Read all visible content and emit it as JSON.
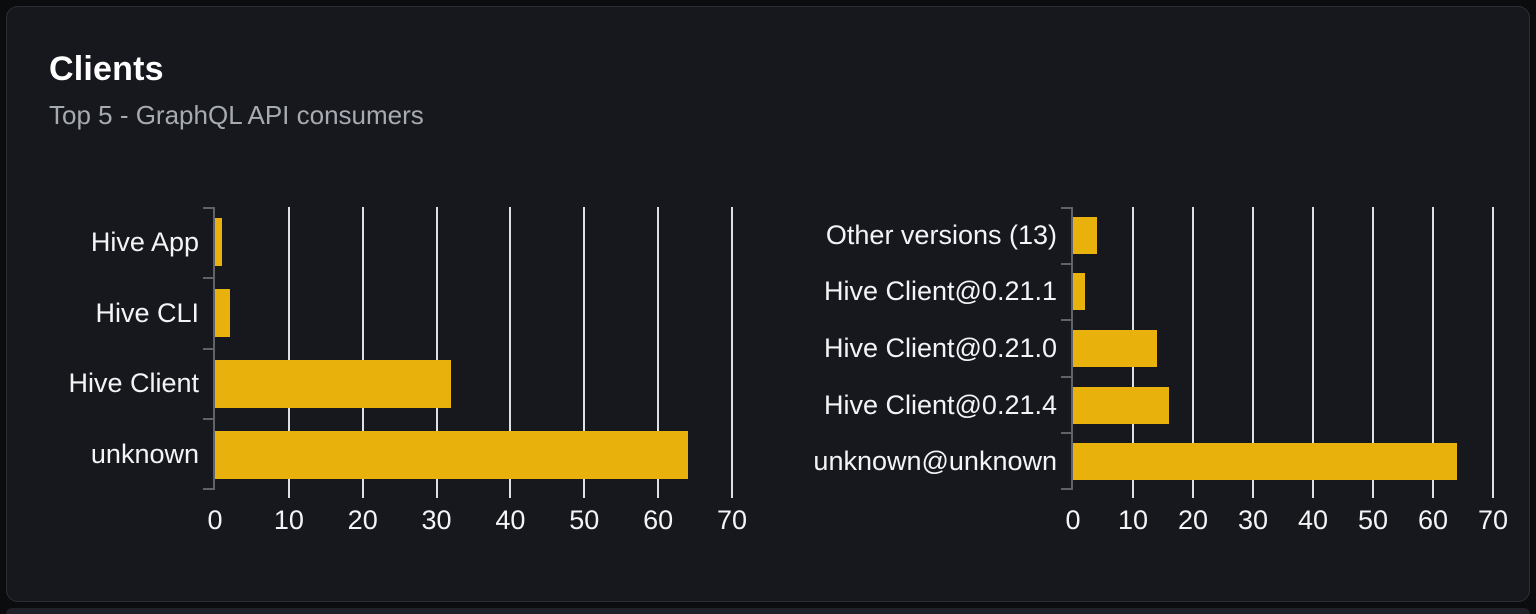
{
  "card": {
    "title": "Clients",
    "subtitle": "Top 5 - GraphQL API consumers"
  },
  "colors": {
    "page_bg": "#0b0c0e",
    "card_bg": "#16181d",
    "card_border": "#2a2d33",
    "bar": "#e8b10c",
    "gridline": "#dde0e7",
    "axis": "#5d626b",
    "label_text": "#f2f4f6",
    "subtitle_text": "#a6aab1",
    "title_text": "#ffffff"
  },
  "chart_data": [
    {
      "id": "clients-by-name",
      "type": "bar",
      "orientation": "horizontal",
      "title": "",
      "categories": [
        "Hive App",
        "Hive CLI",
        "Hive Client",
        "unknown"
      ],
      "values": [
        1,
        2,
        32,
        64
      ],
      "xlim": [
        0,
        70
      ],
      "xticks": [
        0,
        10,
        20,
        30,
        40,
        50,
        60,
        70
      ],
      "grid": true,
      "legend": "none",
      "bar_color": "#e8b10c"
    },
    {
      "id": "clients-by-version",
      "type": "bar",
      "orientation": "horizontal",
      "title": "",
      "categories": [
        "Other versions (13)",
        "Hive Client@0.21.1",
        "Hive Client@0.21.0",
        "Hive Client@0.21.4",
        "unknown@unknown"
      ],
      "values": [
        4,
        2,
        14,
        16,
        64
      ],
      "xlim": [
        0,
        70
      ],
      "xticks": [
        0,
        10,
        20,
        30,
        40,
        50,
        60,
        70
      ],
      "grid": true,
      "legend": "none",
      "bar_color": "#e8b10c"
    }
  ]
}
